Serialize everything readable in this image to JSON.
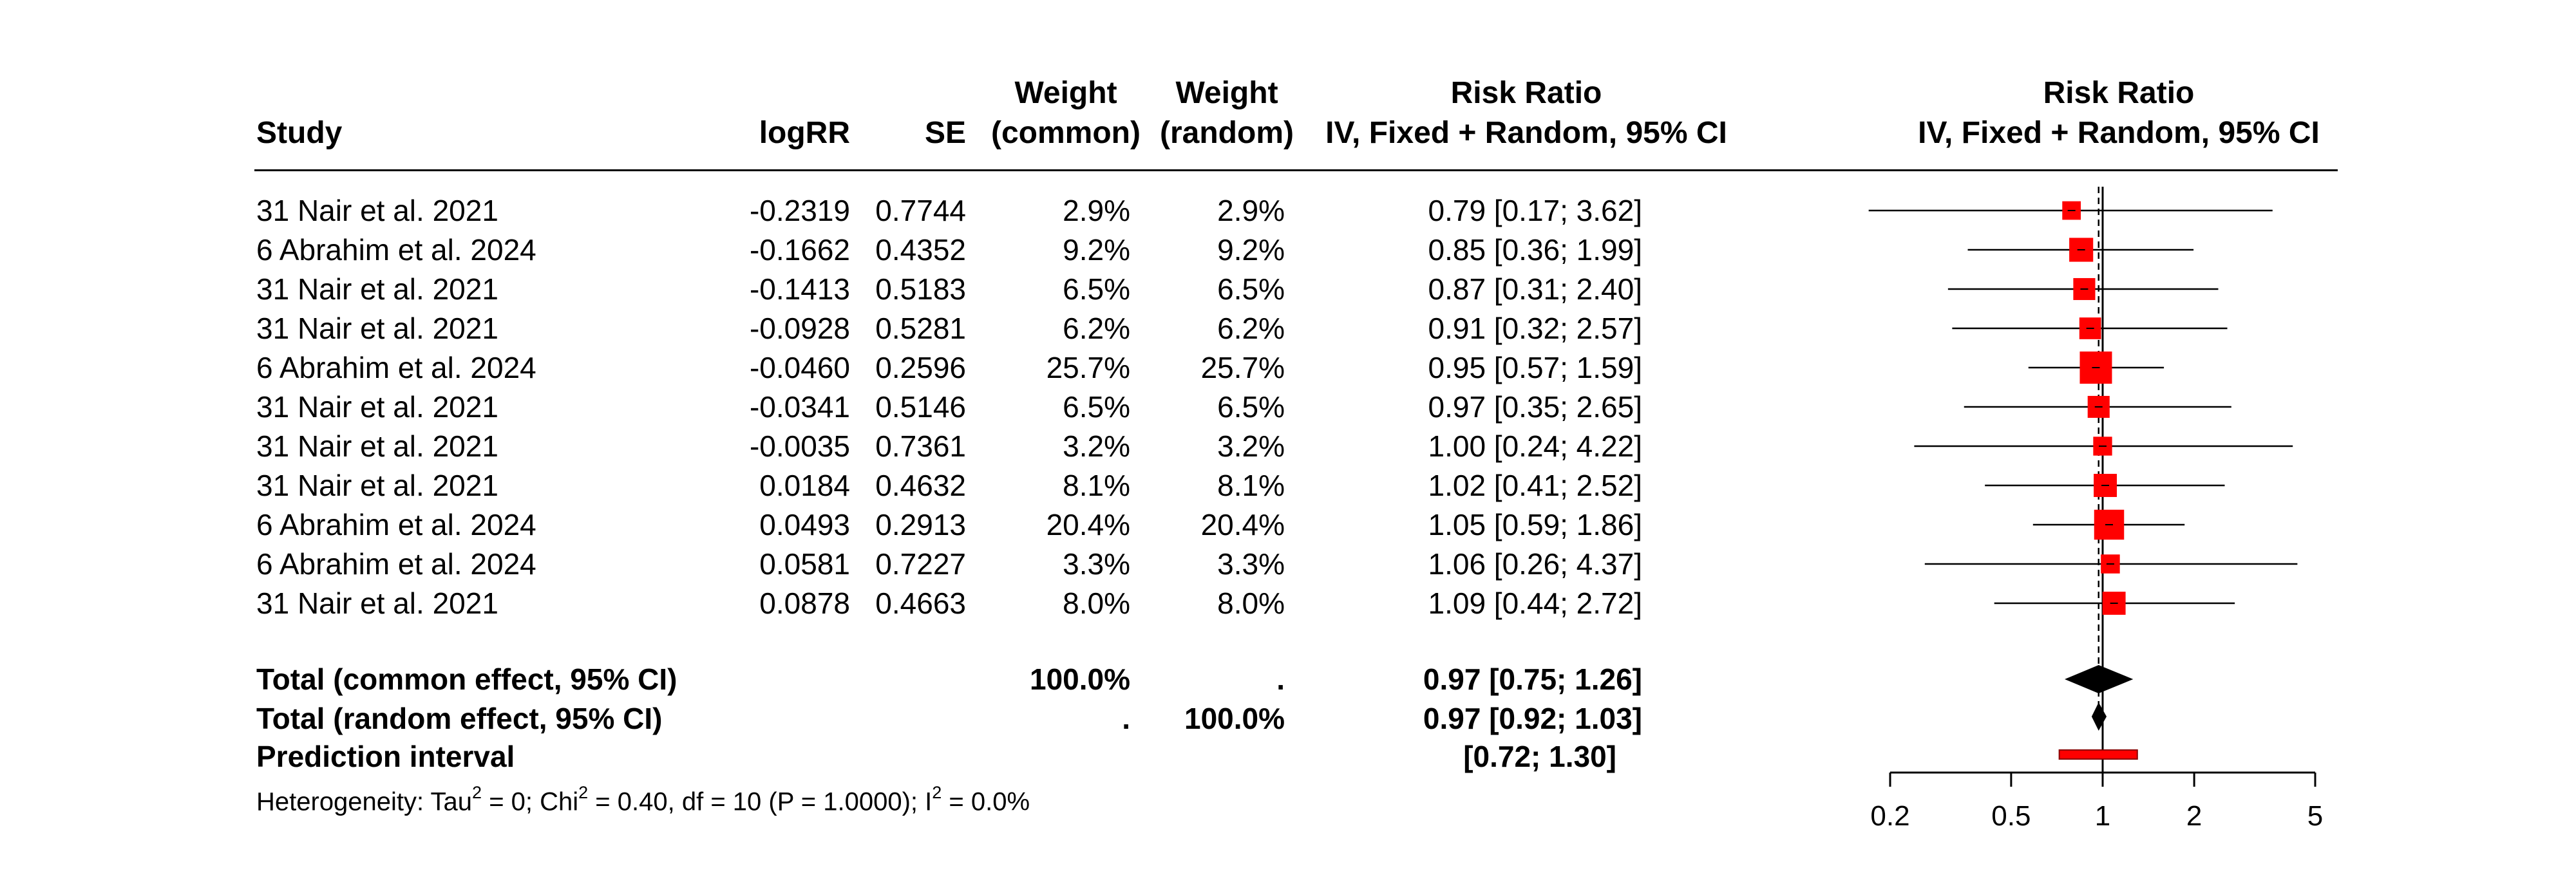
{
  "headers": {
    "study": "Study",
    "logrr": "logRR",
    "se": "SE",
    "wc1": "Weight",
    "wc2": "(common)",
    "wr1": "Weight",
    "wr2": "(random)",
    "rr1": "Risk Ratio",
    "rr2": "IV, Fixed + Random, 95% CI",
    "plot1": "Risk Ratio",
    "plot2": "IV, Fixed + Random, 95% CI"
  },
  "studies": [
    {
      "study": "31 Nair et al. 2021",
      "logRR": "-0.2319",
      "SE": "0.7744",
      "w_common": "2.9%",
      "w_random": "2.9%",
      "ci_text": "0.79 [0.17; 3.62]"
    },
    {
      "study": "6 Abrahim et al. 2024",
      "logRR": "-0.1662",
      "SE": "0.4352",
      "w_common": "9.2%",
      "w_random": "9.2%",
      "ci_text": "0.85 [0.36; 1.99]"
    },
    {
      "study": "31 Nair et al. 2021",
      "logRR": "-0.1413",
      "SE": "0.5183",
      "w_common": "6.5%",
      "w_random": "6.5%",
      "ci_text": "0.87 [0.31; 2.40]"
    },
    {
      "study": "31 Nair et al. 2021",
      "logRR": "-0.0928",
      "SE": "0.5281",
      "w_common": "6.2%",
      "w_random": "6.2%",
      "ci_text": "0.91 [0.32; 2.57]"
    },
    {
      "study": "6 Abrahim et al. 2024",
      "logRR": "-0.0460",
      "SE": "0.2596",
      "w_common": "25.7%",
      "w_random": "25.7%",
      "ci_text": "0.95 [0.57; 1.59]"
    },
    {
      "study": "31 Nair et al. 2021",
      "logRR": "-0.0341",
      "SE": "0.5146",
      "w_common": "6.5%",
      "w_random": "6.5%",
      "ci_text": "0.97 [0.35; 2.65]"
    },
    {
      "study": "31 Nair et al. 2021",
      "logRR": "-0.0035",
      "SE": "0.7361",
      "w_common": "3.2%",
      "w_random": "3.2%",
      "ci_text": "1.00 [0.24; 4.22]"
    },
    {
      "study": "31 Nair et al. 2021",
      "logRR": "0.0184",
      "SE": "0.4632",
      "w_common": "8.1%",
      "w_random": "8.1%",
      "ci_text": "1.02 [0.41; 2.52]"
    },
    {
      "study": "6 Abrahim et al. 2024",
      "logRR": "0.0493",
      "SE": "0.2913",
      "w_common": "20.4%",
      "w_random": "20.4%",
      "ci_text": "1.05 [0.59; 1.86]"
    },
    {
      "study": "6 Abrahim et al. 2024",
      "logRR": "0.0581",
      "SE": "0.7227",
      "w_common": "3.3%",
      "w_random": "3.3%",
      "ci_text": "1.06 [0.26; 4.37]"
    },
    {
      "study": "31 Nair et al. 2021",
      "logRR": "0.0878",
      "SE": "0.4663",
      "w_common": "8.0%",
      "w_random": "8.0%",
      "ci_text": "1.09 [0.44; 2.72]"
    }
  ],
  "summary": {
    "common": {
      "label": "Total (common effect, 95% CI)",
      "w_common": "100.0%",
      "w_random": ".",
      "ci_text": "0.97 [0.75; 1.26]"
    },
    "random": {
      "label": "Total (random effect, 95% CI)",
      "w_common": ".",
      "w_random": "100.0%",
      "ci_text": "0.97 [0.92; 1.03]"
    },
    "pred": {
      "label": "Prediction interval",
      "ci_text": "[0.72; 1.30]"
    }
  },
  "heterogeneity": {
    "prefix": "Heterogeneity: Tau",
    "sup1": "2",
    "mid1": " = 0; Chi",
    "sup2": "2",
    "mid2": " = 0.40, df = 10 (P = 1.0000); I",
    "sup3": "2",
    "end": " = 0.0%"
  },
  "chart_data": {
    "type": "forest",
    "scale": "log",
    "xlim": [
      0.2,
      5
    ],
    "ticks": [
      0.2,
      0.5,
      1,
      2,
      5
    ],
    "tick_labels": [
      "0.2",
      "0.5",
      "1",
      "2",
      "5"
    ],
    "null_value": 1,
    "colors": {
      "square": "#ff0000",
      "diamond": "#000000",
      "prediction": "#ff0000",
      "line": "#000000"
    },
    "studies": [
      {
        "est": 0.79,
        "lo": 0.17,
        "hi": 3.62,
        "weight": 2.9
      },
      {
        "est": 0.85,
        "lo": 0.36,
        "hi": 1.99,
        "weight": 9.2
      },
      {
        "est": 0.87,
        "lo": 0.31,
        "hi": 2.4,
        "weight": 6.5
      },
      {
        "est": 0.91,
        "lo": 0.32,
        "hi": 2.57,
        "weight": 6.2
      },
      {
        "est": 0.95,
        "lo": 0.57,
        "hi": 1.59,
        "weight": 25.7
      },
      {
        "est": 0.97,
        "lo": 0.35,
        "hi": 2.65,
        "weight": 6.5
      },
      {
        "est": 1.0,
        "lo": 0.24,
        "hi": 4.22,
        "weight": 3.2
      },
      {
        "est": 1.02,
        "lo": 0.41,
        "hi": 2.52,
        "weight": 8.1
      },
      {
        "est": 1.05,
        "lo": 0.59,
        "hi": 1.86,
        "weight": 20.4
      },
      {
        "est": 1.06,
        "lo": 0.26,
        "hi": 4.37,
        "weight": 3.3
      },
      {
        "est": 1.09,
        "lo": 0.44,
        "hi": 2.72,
        "weight": 8.0
      }
    ],
    "common_effect": {
      "est": 0.97,
      "lo": 0.75,
      "hi": 1.26
    },
    "random_effect": {
      "est": 0.97,
      "lo": 0.92,
      "hi": 1.03
    },
    "prediction_interval": {
      "lo": 0.72,
      "hi": 1.3
    }
  }
}
